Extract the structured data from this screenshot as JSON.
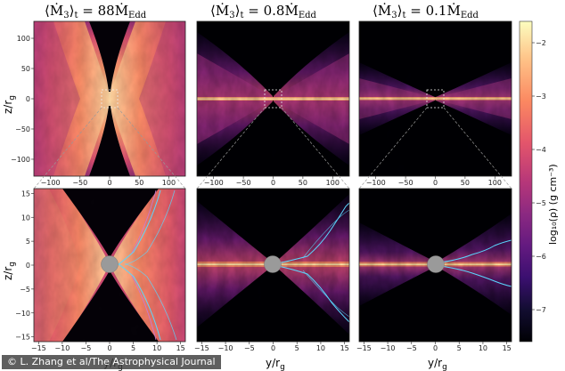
{
  "figure": {
    "titles": [
      {
        "prefix": "⟨Ṁ",
        "sub": "3",
        "mid": "⟩",
        "sub2": "t",
        "eq": " = 88",
        "tail": "Ṁ",
        "tailsub": "Edd"
      },
      {
        "prefix": "⟨Ṁ",
        "sub": "3",
        "mid": "⟩",
        "sub2": "t",
        "eq": " = 0.8",
        "tail": "Ṁ",
        "tailsub": "Edd"
      },
      {
        "prefix": "⟨Ṁ",
        "sub": "3",
        "mid": "⟩",
        "sub2": "t",
        "eq": " = 0.1",
        "tail": "Ṁ",
        "tailsub": "Edd"
      }
    ],
    "top_row": {
      "ylabel": "z/r",
      "ylabel_sub": "g",
      "yticks": [
        "100",
        "50",
        "0",
        "−50",
        "−100"
      ],
      "xticks": [
        "−100",
        "−50",
        "0",
        "50",
        "100"
      ]
    },
    "bottom_row": {
      "ylabel": "z/r",
      "ylabel_sub": "g",
      "yticks": [
        "15",
        "10",
        "5",
        "0",
        "−5",
        "−10",
        "−15"
      ],
      "xticks": [
        "−15",
        "−10",
        "−5",
        "0",
        "5",
        "10",
        "15"
      ],
      "xlabel": "y/r",
      "xlabel_sub": "g"
    },
    "colorbar": {
      "label": "log₁₀(ρ) (g cm⁻³)",
      "ticks": [
        "−2",
        "−3",
        "−4",
        "−5",
        "−6",
        "−7"
      ],
      "stops": [
        "#fcfdbf",
        "#fec287",
        "#fb8861",
        "#e3556b",
        "#b73779",
        "#8c2981",
        "#641a80",
        "#3b0f70",
        "#120d31",
        "#000004"
      ]
    }
  },
  "credit": "© L. Zhang et al/The Astrophysical Journal"
}
